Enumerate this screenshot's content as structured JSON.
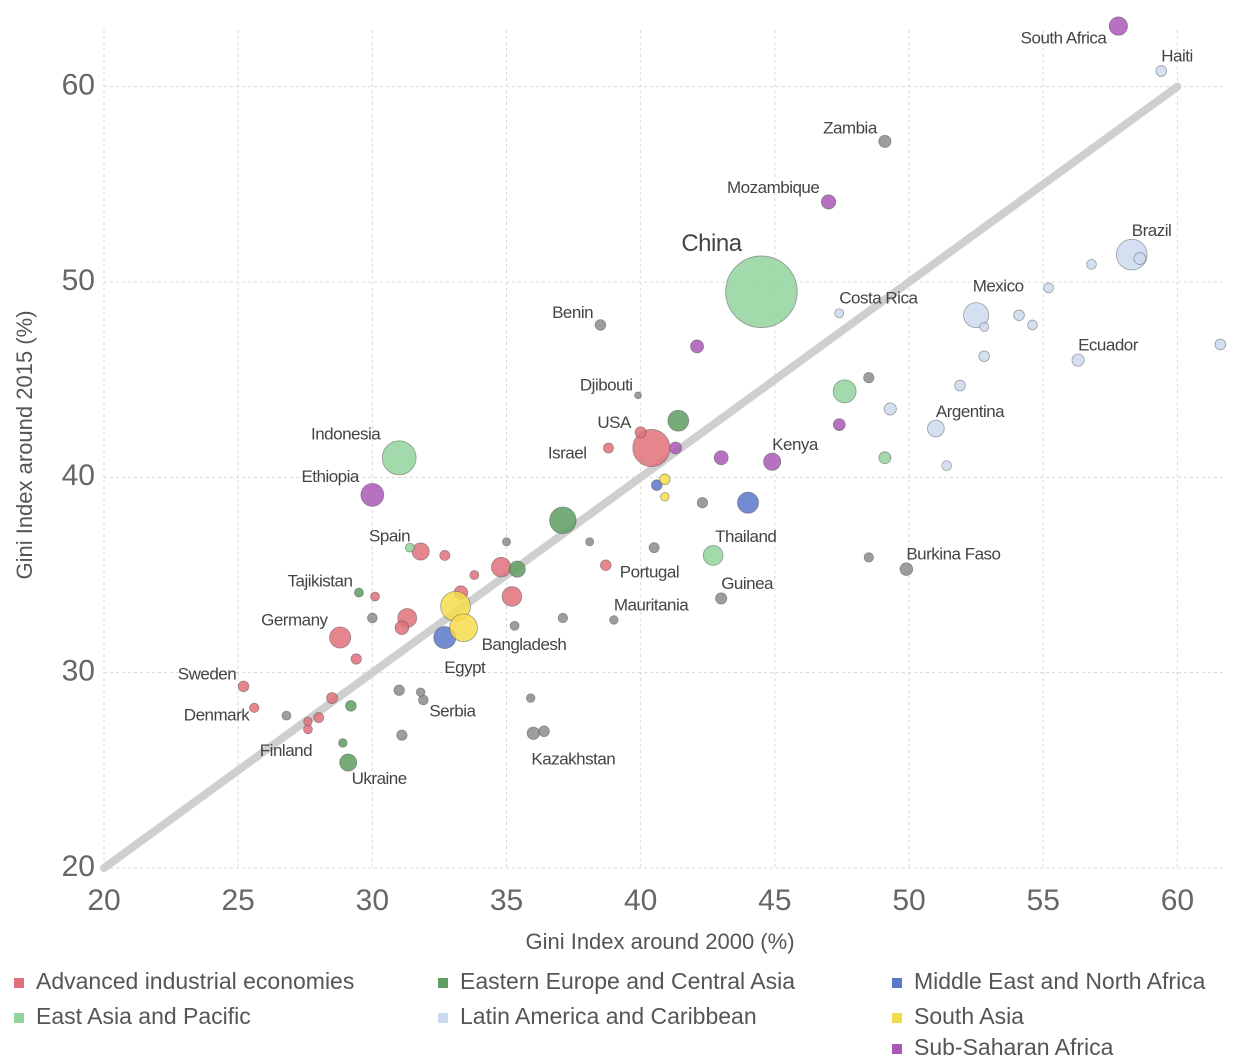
{
  "chart_data": {
    "type": "scatter",
    "x_label": "Gini Index around 2000 (%)",
    "y_label": "Gini Index around 2015 (%)",
    "xlim": [
      20,
      61.7
    ],
    "ylim": [
      20,
      62.9
    ],
    "xticks": [
      20,
      25,
      30,
      35,
      40,
      45,
      50,
      55,
      60
    ],
    "yticks": [
      20,
      30,
      40,
      50,
      60
    ],
    "grid": true,
    "identity_line": [
      20,
      60
    ],
    "legend": "bottom",
    "series": [
      {
        "name": "Advanced industrial economies",
        "color": "#e0707a",
        "x": [
          25.2,
          25.6,
          27.6,
          28.0,
          28.5,
          28.8,
          29.4,
          30.1,
          31.8,
          32.7,
          31.3,
          31.1,
          33.3,
          33.8,
          34.8,
          35.2,
          38.7,
          38.8,
          40.4,
          40.0,
          27.6
        ],
        "values": [
          29.3,
          28.2,
          27.1,
          27.7,
          28.7,
          31.8,
          30.7,
          33.9,
          36.2,
          36.0,
          32.8,
          32.3,
          34.1,
          35.0,
          35.4,
          33.9,
          35.5,
          41.5,
          41.5,
          42.3,
          27.5
        ],
        "sizes": [
          10,
          6,
          5,
          8,
          11,
          81,
          9,
          5,
          46,
          8,
          60,
          23,
          23,
          5,
          65,
          66,
          10,
          8,
          320,
          12,
          4
        ],
        "labels": [
          "Sweden",
          "Denmark",
          "Finland",
          null,
          null,
          "Germany",
          null,
          null,
          "Spain",
          null,
          null,
          null,
          null,
          null,
          null,
          null,
          "Portugal",
          "Israel",
          "USA",
          null,
          null
        ]
      },
      {
        "name": "East Asia and Pacific",
        "color": "#92d49c",
        "x": [
          44.5,
          31.0,
          42.7,
          47.6,
          49.1,
          31.4
        ],
        "values": [
          49.5,
          41.0,
          36.0,
          44.4,
          41.0,
          36.4
        ],
        "sizes": [
          1370,
          258,
          68,
          100,
          15,
          5
        ],
        "labels": [
          "China",
          "Indonesia",
          "Thailand",
          null,
          null,
          null
        ]
      },
      {
        "name": "Eastern Europe and Central Asia",
        "color": "#5e9e62",
        "x": [
          29.1,
          28.9,
          29.5,
          37.1,
          35.4,
          41.4,
          29.2
        ],
        "values": [
          25.4,
          26.4,
          34.1,
          37.8,
          35.3,
          42.9,
          28.3
        ],
        "sizes": [
          45,
          4,
          5,
          144,
          38,
          78,
          10
        ],
        "labels": [
          "Ukraine",
          null,
          "Tajikistan",
          null,
          null,
          null,
          null
        ]
      },
      {
        "name": "Latin America and Caribbean",
        "color": "#ccdaf0",
        "x": [
          58.3,
          58.6,
          52.5,
          52.8,
          47.4,
          59.4,
          56.3,
          51.0,
          49.3,
          51.4,
          51.9,
          52.8,
          54.1,
          54.6,
          55.2,
          56.8,
          61.6
        ],
        "values": [
          51.4,
          51.2,
          48.3,
          47.7,
          48.4,
          60.8,
          46.0,
          42.5,
          43.5,
          40.6,
          44.7,
          46.2,
          48.3,
          47.8,
          49.7,
          50.9,
          46.8
        ],
        "sizes": [
          205,
          15,
          125,
          5,
          5,
          10,
          16,
          43,
          16,
          7,
          10,
          10,
          10,
          7,
          7,
          7,
          10
        ],
        "labels": [
          "Brazil",
          null,
          "Mexico",
          null,
          "Costa Rica",
          "Haiti",
          "Ecuador",
          "Argentina",
          null,
          null,
          null,
          null,
          null,
          null,
          null,
          null,
          null
        ]
      },
      {
        "name": "Middle East and North Africa",
        "color": "#5b78c9",
        "x": [
          32.7,
          40.6,
          44.0
        ],
        "values": [
          31.8,
          39.6,
          38.7
        ],
        "sizes": [
          90,
          10,
          80
        ],
        "labels": [
          "Egypt",
          null,
          null
        ]
      },
      {
        "name": "South Asia",
        "color": "#f6dc4c",
        "x": [
          33.1,
          33.4,
          40.9,
          40.9
        ],
        "values": [
          33.4,
          32.3,
          39.9,
          39.0
        ],
        "sizes": [
          190,
          160,
          10,
          4
        ],
        "labels": [
          null,
          "Bangladesh",
          null,
          null
        ]
      },
      {
        "name": "Sub-Saharan Africa",
        "color": "#a958b6",
        "x": [
          57.8,
          47.0,
          30.0,
          44.9,
          42.1,
          43.0,
          47.4,
          41.3
        ],
        "values": [
          63.1,
          54.1,
          39.1,
          40.8,
          46.7,
          41.0,
          42.7,
          41.5
        ],
        "sizes": [
          55,
          27,
          99,
          46,
          20,
          25,
          15,
          15
        ],
        "labels": [
          "South Africa",
          "Mozambique",
          "Ethiopia",
          "Kenya",
          null,
          null,
          null,
          null
        ]
      },
      {
        "color": "#8c8c8c",
        "x": [
          49.1,
          38.5,
          39.9,
          49.9,
          43.0,
          39.0,
          36.0,
          36.4,
          31.9,
          31.8,
          31.0,
          31.1,
          30.0,
          35.0,
          35.9,
          35.3,
          37.1,
          38.1,
          40.5,
          42.3,
          48.5,
          48.5,
          26.8
        ],
        "values": [
          57.2,
          47.8,
          44.2,
          35.3,
          33.8,
          32.7,
          26.9,
          27.0,
          28.6,
          29.0,
          29.1,
          26.8,
          32.8,
          36.7,
          28.7,
          32.4,
          32.8,
          36.7,
          36.4,
          38.7,
          45.1,
          35.9,
          27.8
        ],
        "sizes": [
          16,
          10,
          1,
          18,
          12,
          4,
          17,
          10,
          7,
          4,
          9,
          9,
          7,
          3,
          4,
          5,
          6,
          3,
          8,
          9,
          9,
          6,
          5
        ],
        "labels": [
          "Zambia",
          "Benin",
          "Djibouti",
          "Burkina Faso",
          "Guinea",
          "Mauritania",
          "Kazakhstan",
          null,
          "Serbia",
          null,
          null,
          null,
          null,
          null,
          null,
          null,
          null,
          null,
          null,
          null,
          null,
          null,
          null
        ]
      }
    ]
  }
}
